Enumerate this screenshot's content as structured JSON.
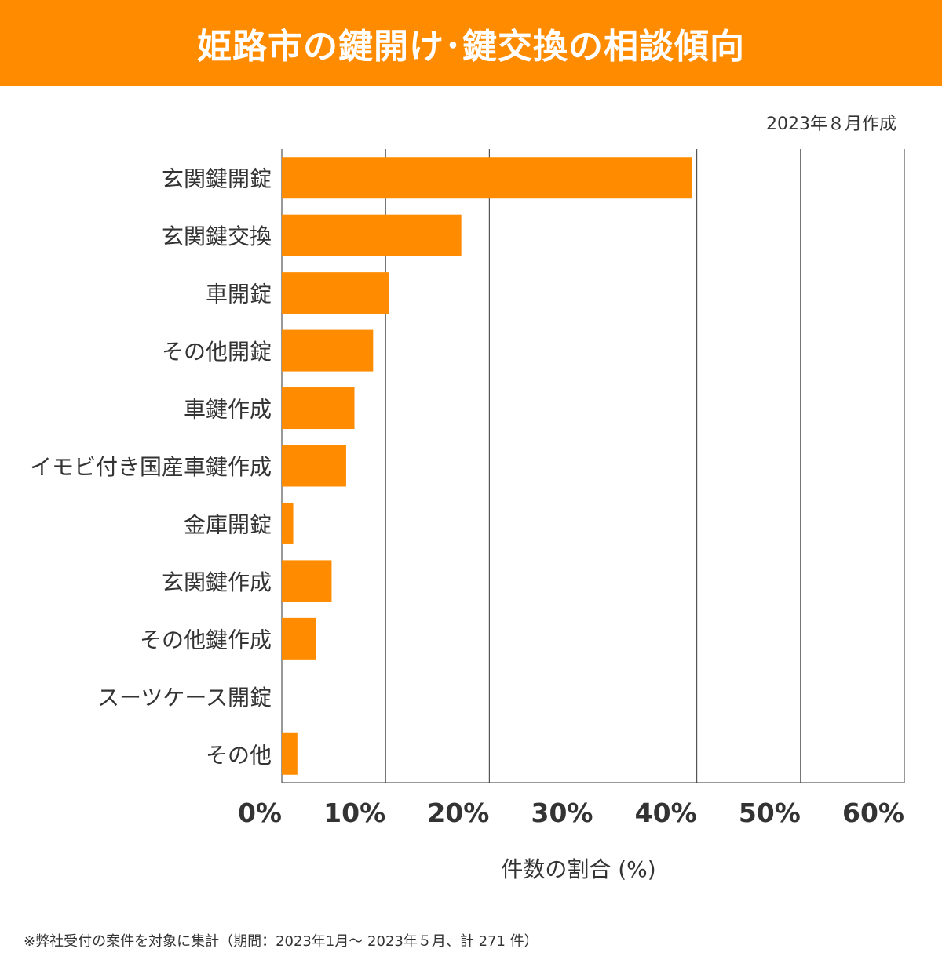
{
  "header": {
    "title": "姫路市の鍵開け･鍵交換の相談傾向"
  },
  "date_note": "2023年８月作成",
  "footnote": "※弊社受付の案件を対象に集計（期間：2023年1月～ 2023年５月、計 271 件）",
  "colors": {
    "accent": "#FF8C00",
    "text": "#333333",
    "grid": "#333333"
  },
  "chart_data": {
    "type": "bar",
    "orientation": "horizontal",
    "title": "姫路市の鍵開け･鍵交換の相談傾向",
    "xlabel": "件数の割合 (%)",
    "ylabel": "",
    "xlim": [
      0,
      60
    ],
    "xticks": [
      0,
      10,
      20,
      30,
      40,
      50,
      60
    ],
    "xtick_labels": [
      "0%",
      "10%",
      "20%",
      "30%",
      "40%",
      "50%",
      "60%"
    ],
    "grid": "vertical",
    "categories": [
      "玄関鍵開錠",
      "玄関鍵交換",
      "車開錠",
      "その他開錠",
      "車鍵作成",
      "イモビ付き国産車鍵作成",
      "金庫開錠",
      "玄関鍵作成",
      "その他鍵作成",
      "スーツケース開錠",
      "その他"
    ],
    "values": [
      39.5,
      17.3,
      10.3,
      8.8,
      7.0,
      6.2,
      1.1,
      4.8,
      3.3,
      0,
      1.5
    ]
  }
}
